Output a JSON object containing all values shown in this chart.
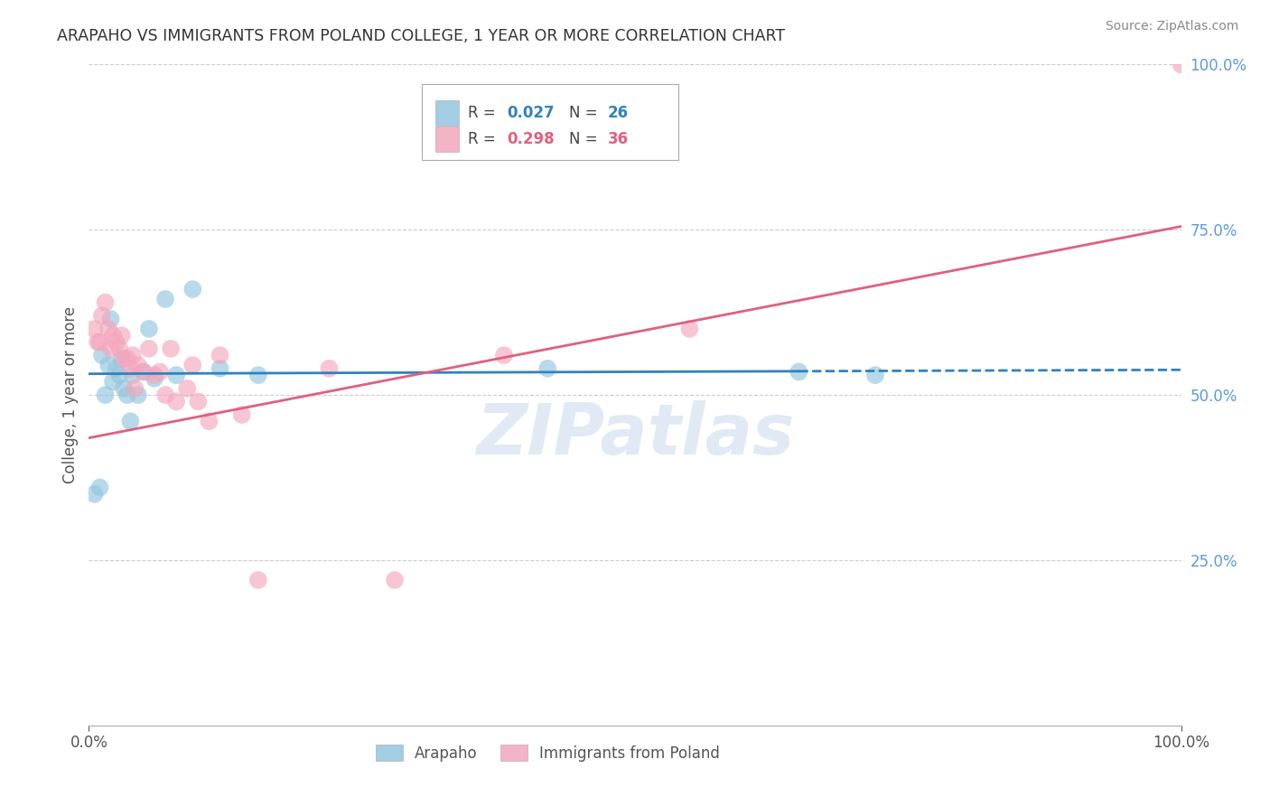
{
  "title": "ARAPAHO VS IMMIGRANTS FROM POLAND COLLEGE, 1 YEAR OR MORE CORRELATION CHART",
  "source": "Source: ZipAtlas.com",
  "ylabel": "College, 1 year or more",
  "xlim": [
    0,
    1.0
  ],
  "ylim": [
    0,
    1.0
  ],
  "legend_label1": "Arapaho",
  "legend_label2": "Immigrants from Poland",
  "R1": "0.027",
  "N1": "26",
  "R2": "0.298",
  "N2": "36",
  "color_blue": "#92c5de",
  "color_pink": "#f4a6bc",
  "line_color_blue": "#3182bd",
  "line_color_pink": "#e0607e",
  "watermark": "ZIPatlas",
  "background_color": "#ffffff",
  "grid_color": "#cccccc",
  "arapaho_x": [
    0.005,
    0.01,
    0.012,
    0.015,
    0.018,
    0.02,
    0.022,
    0.025,
    0.028,
    0.03,
    0.032,
    0.035,
    0.038,
    0.04,
    0.045,
    0.05,
    0.055,
    0.06,
    0.07,
    0.08,
    0.095,
    0.12,
    0.155,
    0.42,
    0.65,
    0.72
  ],
  "arapaho_y": [
    0.35,
    0.36,
    0.56,
    0.5,
    0.545,
    0.615,
    0.52,
    0.54,
    0.53,
    0.555,
    0.51,
    0.5,
    0.46,
    0.53,
    0.5,
    0.535,
    0.6,
    0.525,
    0.645,
    0.53,
    0.66,
    0.54,
    0.53,
    0.54,
    0.535,
    0.53
  ],
  "poland_x": [
    0.005,
    0.008,
    0.01,
    0.012,
    0.015,
    0.018,
    0.02,
    0.022,
    0.025,
    0.028,
    0.03,
    0.032,
    0.035,
    0.038,
    0.04,
    0.042,
    0.045,
    0.05,
    0.055,
    0.06,
    0.065,
    0.07,
    0.075,
    0.08,
    0.09,
    0.095,
    0.1,
    0.11,
    0.12,
    0.14,
    0.155,
    0.22,
    0.28,
    0.38,
    0.55,
    1.0
  ],
  "poland_y": [
    0.6,
    0.58,
    0.58,
    0.62,
    0.64,
    0.6,
    0.57,
    0.59,
    0.58,
    0.57,
    0.59,
    0.555,
    0.555,
    0.54,
    0.56,
    0.51,
    0.545,
    0.535,
    0.57,
    0.53,
    0.535,
    0.5,
    0.57,
    0.49,
    0.51,
    0.545,
    0.49,
    0.46,
    0.56,
    0.47,
    0.22,
    0.54,
    0.22,
    0.56,
    0.6,
    1.0
  ],
  "blue_line_solid_end": 0.65,
  "pink_line_end": 1.0,
  "blue_line_y_at_0": 0.532,
  "blue_line_y_at_1": 0.538,
  "pink_line_y_at_0": 0.435,
  "pink_line_y_at_1": 0.755
}
